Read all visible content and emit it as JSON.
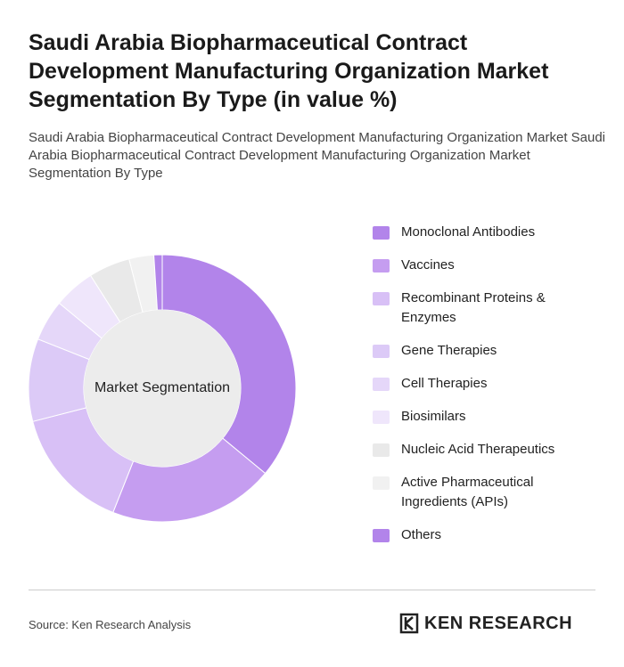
{
  "title": "Saudi Arabia Biopharmaceutical Contract Development Manufacturing Organization Market Segmentation By Type (in value %)",
  "subtitle": "Saudi Arabia Biopharmaceutical Contract Development Manufacturing Organization Market Saudi Arabia Biopharmaceutical Contract Development Manufacturing Organization Market Segmentation By Type",
  "chart_data": {
    "type": "donut",
    "center_label": "Market Segmentation",
    "categories": [
      "Monoclonal Antibodies",
      "Vaccines",
      "Recombinant Proteins & Enzymes",
      "Gene Therapies",
      "Cell Therapies",
      "Biosimilars",
      "Nucleic Acid Therapeutics",
      "Active Pharmaceutical Ingredients (APIs)",
      "Others"
    ],
    "values": [
      36,
      20,
      15,
      10,
      5,
      5,
      5,
      3,
      1
    ],
    "colors": [
      "#b284ea",
      "#c59df0",
      "#d8c0f6",
      "#dccaf7",
      "#e5d7f9",
      "#efe6fb",
      "#e9e9e9",
      "#f1f1f1",
      "#b284ea"
    ]
  },
  "source": "Source: Ken Research Analysis",
  "logo": "KEN RESEARCH"
}
